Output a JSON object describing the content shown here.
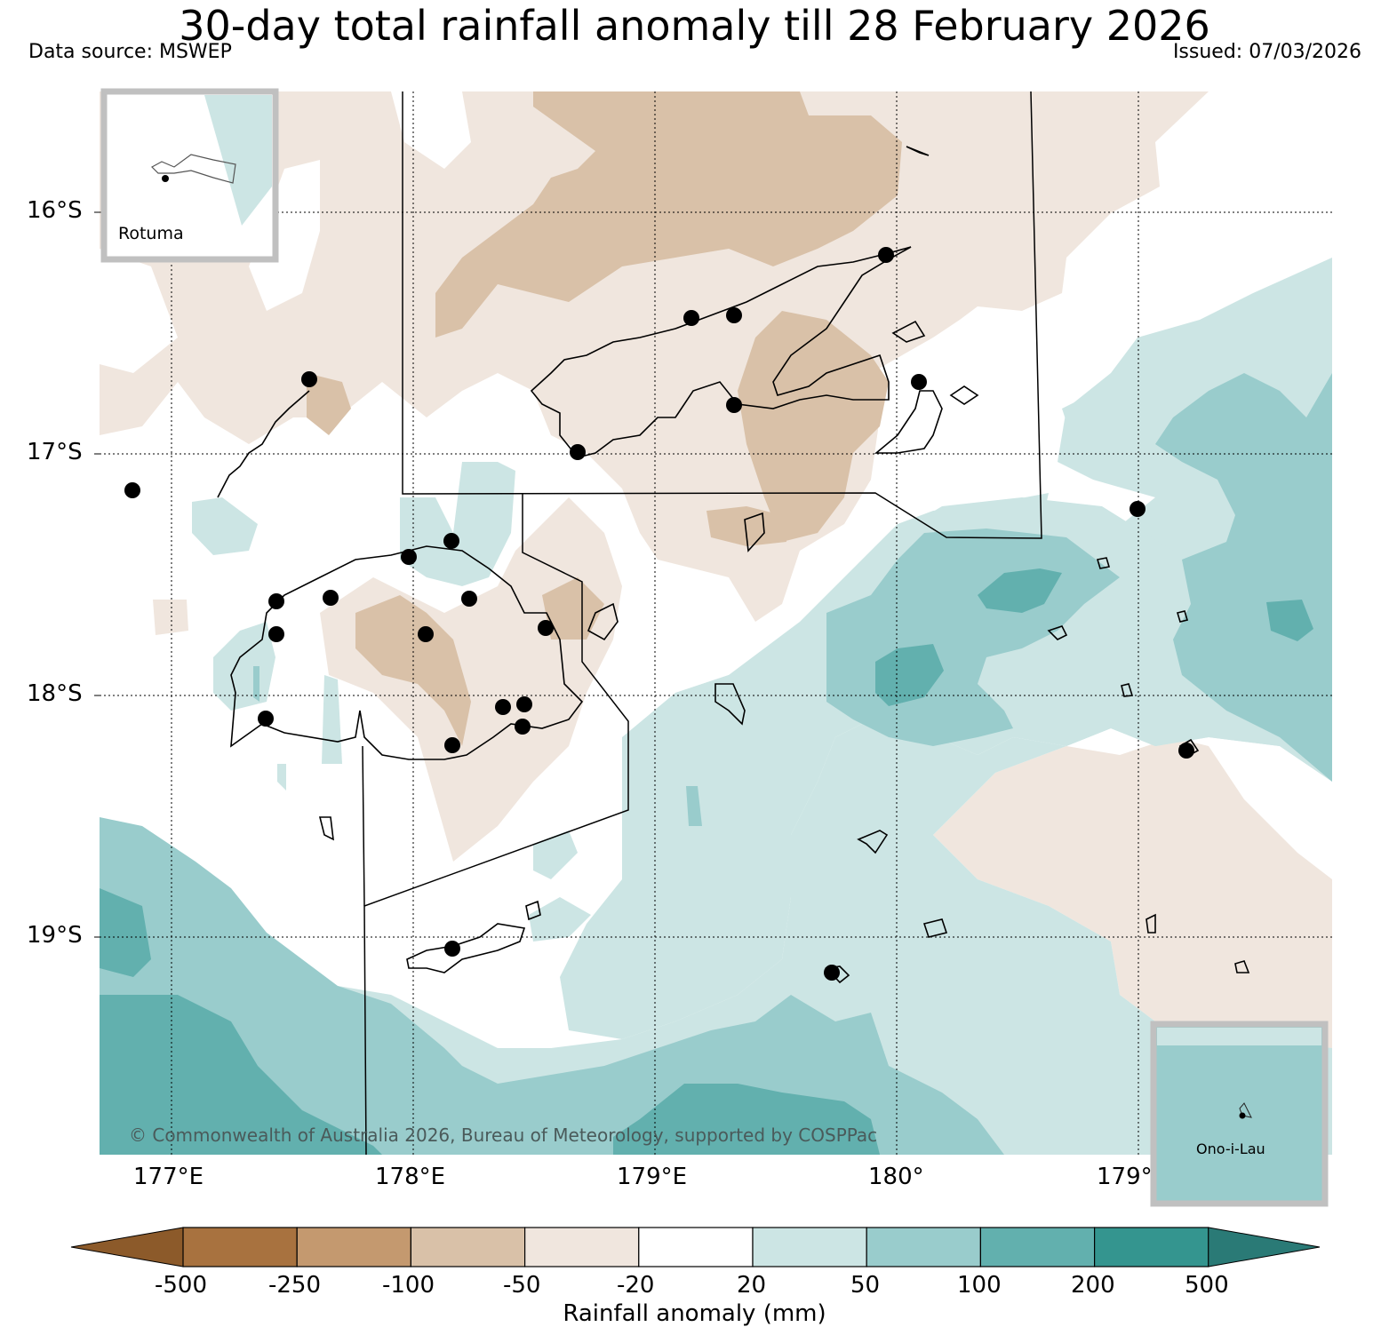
{
  "header": {
    "title": "30-day total rainfall anomaly till 28 February 2026",
    "data_source": "Data source: MSWEP",
    "issued": "Issued: 07/03/2026"
  },
  "map": {
    "lat_labels": [
      "16°S",
      "17°S",
      "18°S",
      "19°S"
    ],
    "lon_labels": [
      "177°E",
      "178°E",
      "179°E",
      "180°",
      "179°"
    ],
    "copyright": "© Commonwealth of Australia 2026, Bureau of Meteorology, supported by COSPPac",
    "insets": [
      {
        "label": "Rotuma"
      },
      {
        "label": "Ono-i-Lau"
      }
    ]
  },
  "colorbar": {
    "ticks": [
      "-500",
      "-250",
      "-100",
      "-50",
      "-20",
      "20",
      "50",
      "100",
      "200",
      "500"
    ],
    "title": "Rainfall anomaly (mm)",
    "colors": [
      "#8c5a2a",
      "#a8723f",
      "#c4996f",
      "#d9c1a8",
      "#f0e6de",
      "#ffffff",
      "#cce5e4",
      "#99cccc",
      "#62b0ae",
      "#34958f",
      "#2a7a76"
    ]
  }
}
